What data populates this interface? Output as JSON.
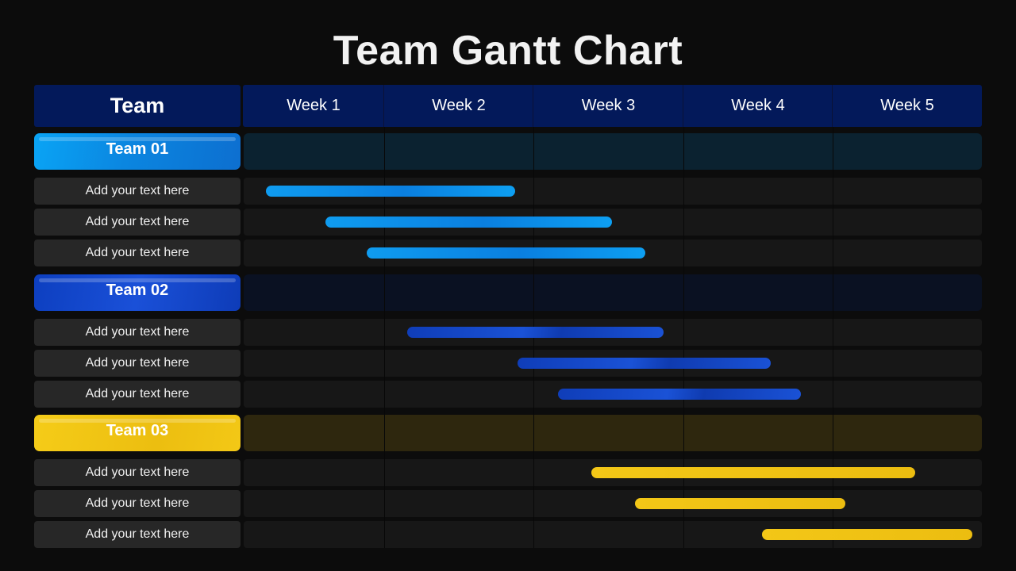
{
  "title": "Team Gantt Chart",
  "header": {
    "team_label": "Team",
    "weeks": [
      "Week 1",
      "Week 2",
      "Week 3",
      "Week 4",
      "Week 5"
    ]
  },
  "colors": {
    "header_bg": "#03195a",
    "team1": "#0a9be8",
    "team2": "#1044c8",
    "team3": "#f0c415",
    "background": "#0c0c0c"
  },
  "chart_data": {
    "type": "gantt",
    "title": "Team Gantt Chart",
    "time_unit": "week",
    "x_categories": [
      "Week 1",
      "Week 2",
      "Week 3",
      "Week 4",
      "Week 5"
    ],
    "xlim": [
      0,
      5
    ],
    "teams": [
      {
        "name": "Team 01",
        "color": "#0a9be8",
        "tasks": [
          {
            "label": "Add your text here",
            "start": 0.16,
            "end": 1.87
          },
          {
            "label": "Add your text here",
            "start": 0.58,
            "end": 2.52
          },
          {
            "label": "Add your text here",
            "start": 0.87,
            "end": 2.74
          }
        ]
      },
      {
        "name": "Team 02",
        "color": "#1044c8",
        "tasks": [
          {
            "label": "Add your text here",
            "start": 1.15,
            "end": 2.86
          },
          {
            "label": "Add your text here",
            "start": 1.89,
            "end": 3.58
          },
          {
            "label": "Add your text here",
            "start": 2.16,
            "end": 3.78
          }
        ]
      },
      {
        "name": "Team 03",
        "color": "#f0c415",
        "tasks": [
          {
            "label": "Add your text here",
            "start": 2.38,
            "end": 4.55
          },
          {
            "label": "Add your text here",
            "start": 2.67,
            "end": 4.08
          },
          {
            "label": "Add your text here",
            "start": 3.52,
            "end": 4.93
          }
        ]
      }
    ]
  }
}
